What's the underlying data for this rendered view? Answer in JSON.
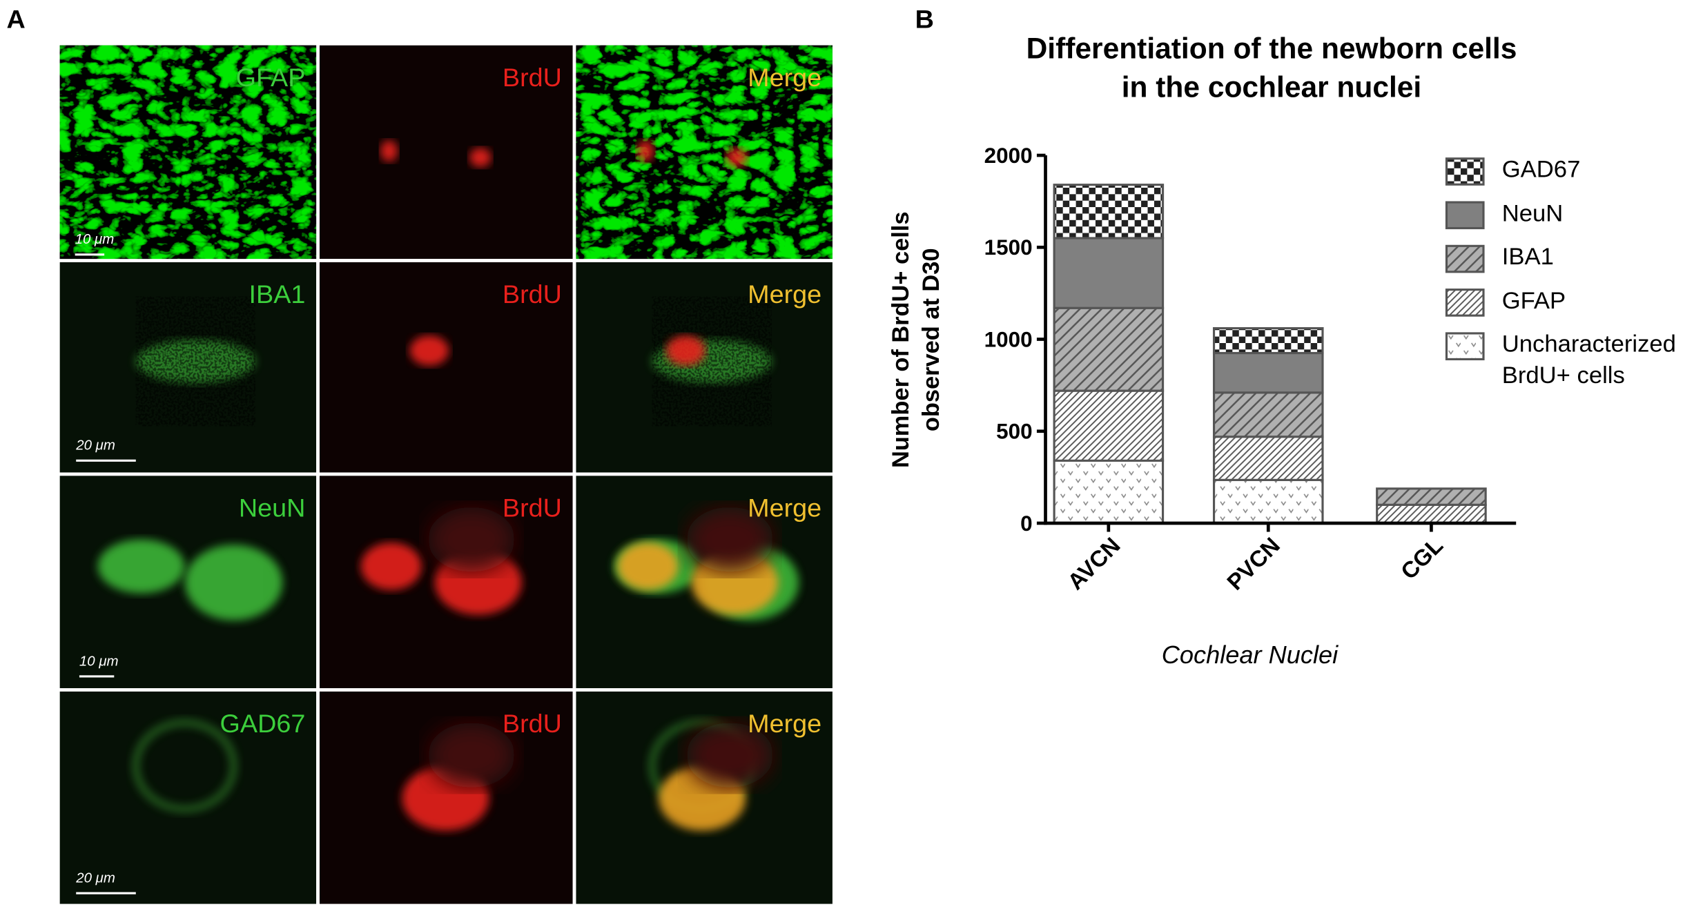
{
  "figure": {
    "panel_a_label": "A",
    "panel_b_label": "B",
    "rows": [
      {
        "marker": "GFAP",
        "brdu": "BrdU",
        "merge": "Merge",
        "scale": "10 μm"
      },
      {
        "marker": "IBA1",
        "brdu": "BrdU",
        "merge": "Merge",
        "scale": "20 μm"
      },
      {
        "marker": "NeuN",
        "brdu": "BrdU",
        "merge": "Merge",
        "scale": "10 μm"
      },
      {
        "marker": "GAD67",
        "brdu": "BrdU",
        "merge": "Merge",
        "scale": "20 μm"
      }
    ]
  },
  "chart_data": {
    "type": "stacked-bar",
    "title": [
      "Differentiation of the newborn cells",
      "in the cochlear nuclei"
    ],
    "y_label": [
      "Number of BrdU+ cells",
      "observed at D30"
    ],
    "x_label": "Cochlear Nuclei",
    "categories": [
      "AVCN",
      "PVCN",
      "CGL"
    ],
    "series": [
      {
        "name": "Uncharacterized BrdU+ cells",
        "color": "#ffffff",
        "pattern": "dots",
        "values": [
          340,
          235,
          0
        ]
      },
      {
        "name": "GFAP",
        "color": "#ffffff",
        "pattern": "dense-hatch",
        "values": [
          380,
          235,
          100
        ]
      },
      {
        "name": "IBA1",
        "color": "#b0b0b0",
        "pattern": "hatch",
        "values": [
          450,
          240,
          88
        ]
      },
      {
        "name": "NeuN",
        "color": "#808080",
        "pattern": "solid",
        "values": [
          380,
          215,
          0
        ]
      },
      {
        "name": "GAD67",
        "color": "#ffffff",
        "pattern": "checker",
        "values": [
          290,
          135,
          0
        ]
      }
    ],
    "ylim": [
      0,
      2000
    ],
    "yticks": [
      0,
      500,
      1000,
      1500,
      2000
    ],
    "legend": "right"
  }
}
